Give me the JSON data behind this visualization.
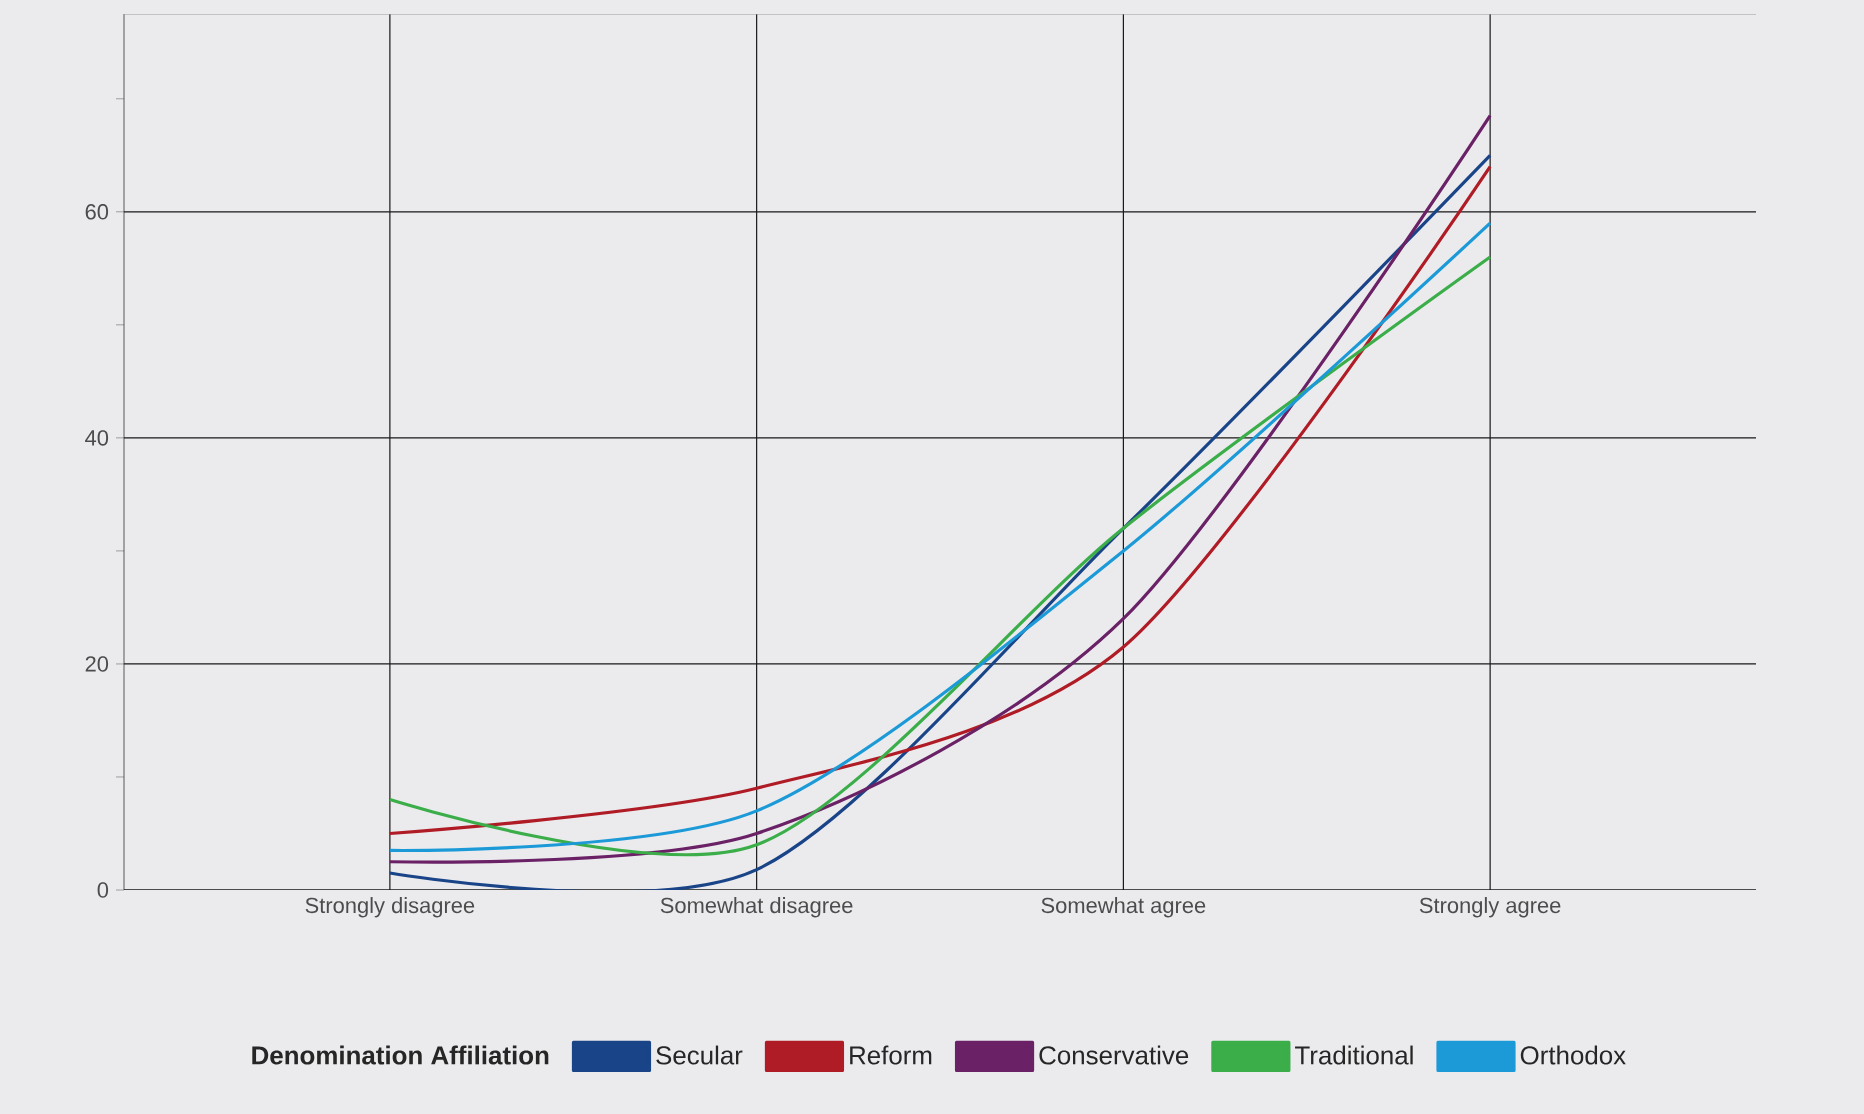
{
  "chart_data": {
    "type": "line",
    "legend_title": "Denomination Affiliation",
    "categories": [
      "Strongly disagree",
      "Somewhat disagree",
      "Somewhat agree",
      "Strongly agree"
    ],
    "series": [
      {
        "name": "Secular",
        "color": "#1a4488",
        "values": [
          1.5,
          1.8,
          32,
          65
        ]
      },
      {
        "name": "Reform",
        "color": "#b01c26",
        "values": [
          5,
          9,
          21.5,
          64
        ]
      },
      {
        "name": "Conservative",
        "color": "#6a2166",
        "values": [
          2.5,
          5,
          24,
          68.5
        ]
      },
      {
        "name": "Traditional",
        "color": "#3bae4a",
        "values": [
          8,
          4,
          32,
          56
        ]
      },
      {
        "name": "Orthodox",
        "color": "#1c9ad8",
        "values": [
          3.5,
          7,
          30,
          59
        ]
      }
    ],
    "ylim": [
      0,
      77.5
    ],
    "yticks": [
      0,
      {
        "value": 10,
        "label": null
      },
      20,
      {
        "value": 30,
        "label": null
      },
      40,
      {
        "value": 50,
        "label": null
      },
      60,
      {
        "value": 70,
        "label": null
      }
    ],
    "grid": true,
    "legend": "bottom",
    "marker": "none",
    "line_style": "solid"
  }
}
